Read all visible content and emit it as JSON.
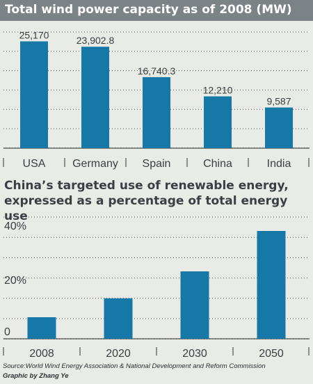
{
  "colors": {
    "bar": "#1578a6",
    "header_bg": "#7c8387",
    "background": "#e9ebe6",
    "grid": "#555555",
    "text": "#3a3f44"
  },
  "chart_data": [
    {
      "type": "bar",
      "title": "Total wind power capacity as of 2008 (MW)",
      "categories": [
        "USA",
        "Germany",
        "Spain",
        "China",
        "India"
      ],
      "values": [
        25170,
        23902.8,
        16740.3,
        12210,
        9587
      ],
      "value_labels": [
        "25,170",
        "23,902.8",
        "16,740.3",
        "12,210",
        "9,587"
      ],
      "ylim": [
        0,
        30000
      ],
      "grid": true,
      "xlabel": "",
      "ylabel": ""
    },
    {
      "type": "bar",
      "title": "China’s targeted use of renewable energy, expressed as a percentage of total energy use",
      "categories": [
        "2008",
        "2020",
        "2030",
        "2050"
      ],
      "values": [
        8,
        15,
        25,
        40
      ],
      "ylim": [
        0,
        44
      ],
      "ytick_labels": [
        "0",
        "20%",
        "40%"
      ],
      "grid": true,
      "xlabel": "",
      "ylabel": ""
    }
  ],
  "footer": {
    "source": "Source:World Wind Energy Association & National Development and Reform Commission",
    "credit": "Graphic by Zhang Ye"
  }
}
